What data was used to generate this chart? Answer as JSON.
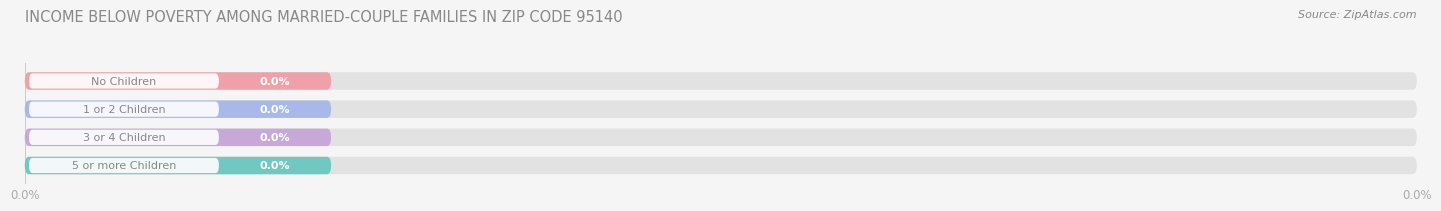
{
  "title": "INCOME BELOW POVERTY AMONG MARRIED-COUPLE FAMILIES IN ZIP CODE 95140",
  "source": "Source: ZipAtlas.com",
  "categories": [
    "No Children",
    "1 or 2 Children",
    "3 or 4 Children",
    "5 or more Children"
  ],
  "values": [
    0.0,
    0.0,
    0.0,
    0.0
  ],
  "bar_colors": [
    "#f0a0a8",
    "#a8b8e8",
    "#c8a8d8",
    "#70c8c0"
  ],
  "label_text_colors": [
    "#888888",
    "#888888",
    "#888888",
    "#888888"
  ],
  "background_color": "#f5f5f5",
  "bar_bg_color": "#e2e2e2",
  "bar_bg_color2": "#ebebeb",
  "value_label_color": "#ffffff",
  "label_text_color": "#888888",
  "xtick_labels": [
    "0.0%",
    "0.0%"
  ],
  "title_color": "#888888",
  "source_color": "#888888"
}
